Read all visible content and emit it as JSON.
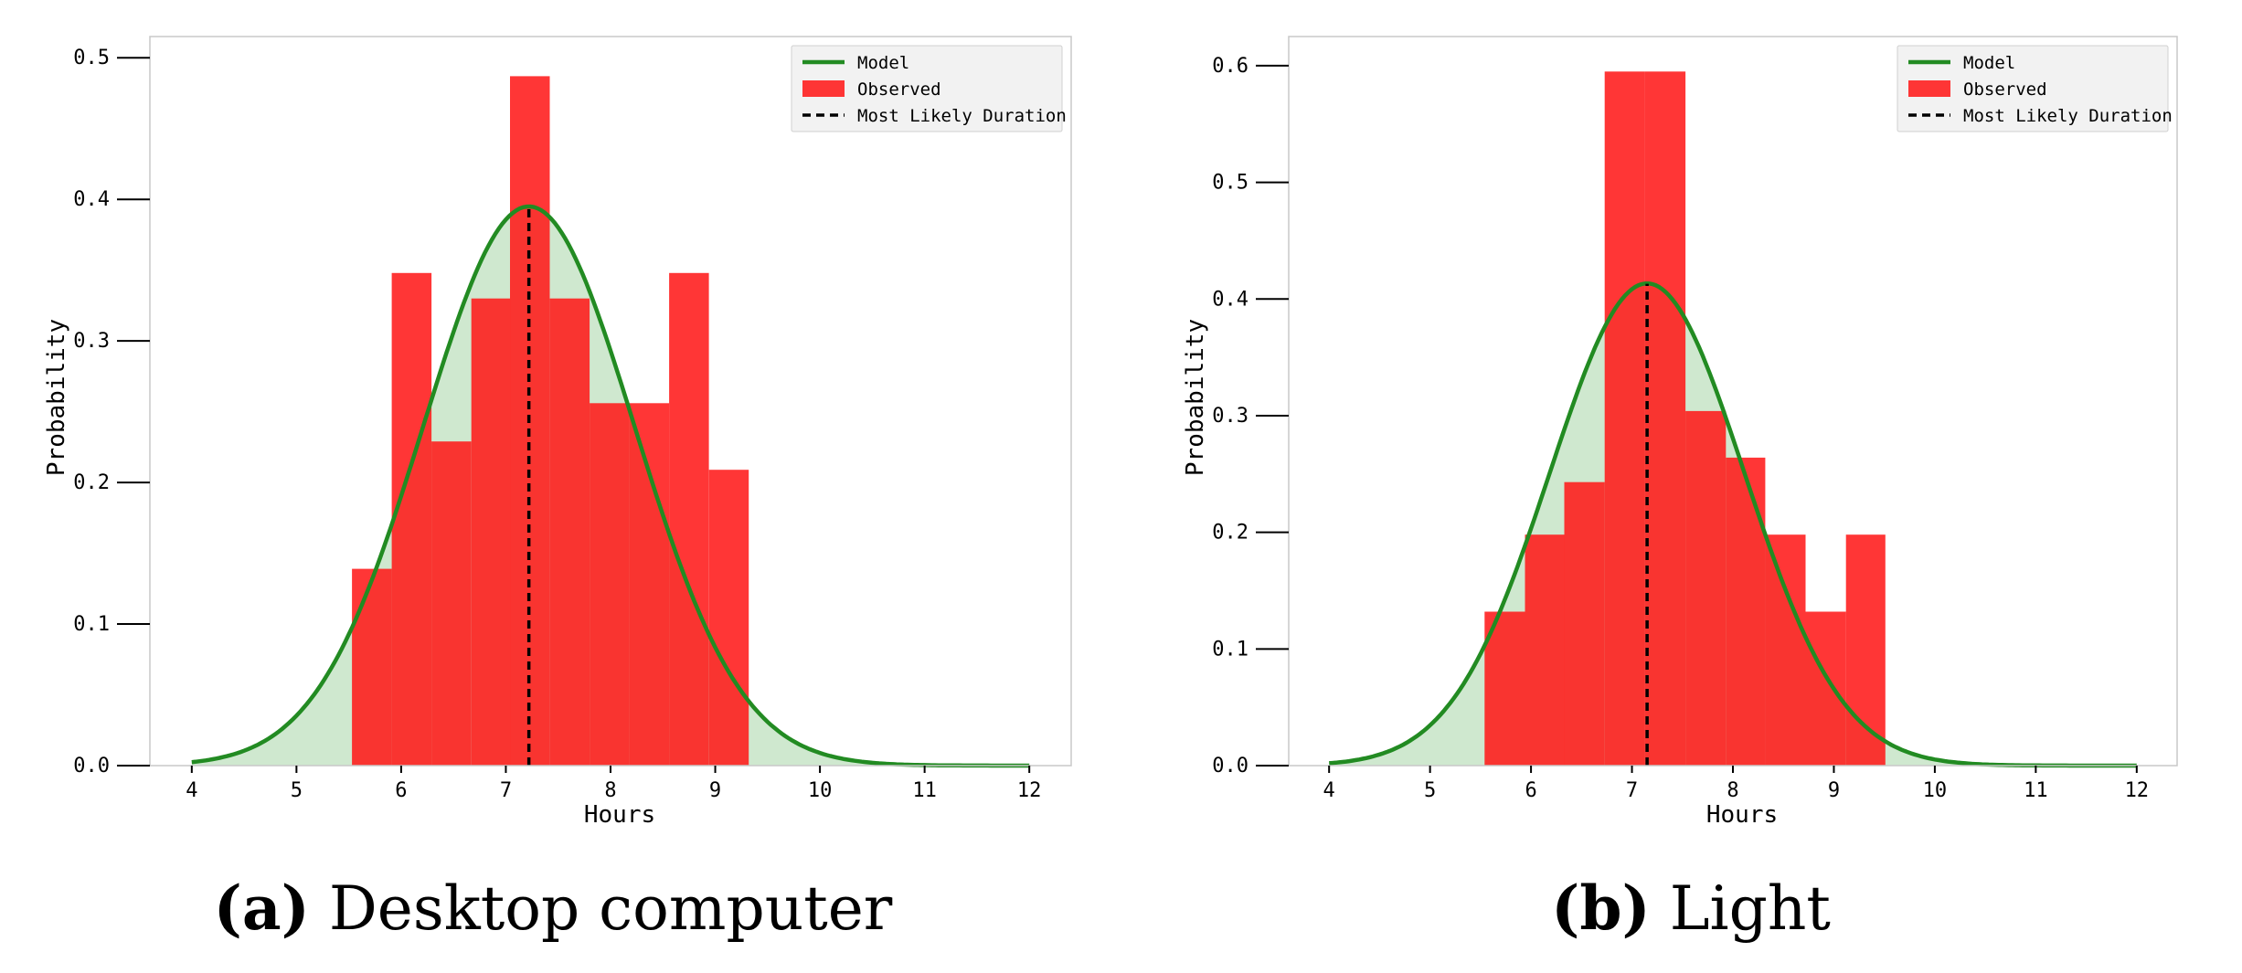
{
  "figure": {
    "panels": [
      {
        "letter": "a",
        "caption": "Desktop computer",
        "legend": {
          "model": "Model",
          "observed": "Observed",
          "most_likely": "Most Likely Duration"
        }
      },
      {
        "letter": "b",
        "caption": "Light",
        "legend": {
          "model": "Model",
          "observed": "Observed",
          "most_likely": "Most Likely Duration"
        }
      }
    ]
  },
  "colors": {
    "bar": "#ff1a1a",
    "curve": "#228b22",
    "fill": "#cfe8cf",
    "mode_line": "#000000",
    "axes": "#c8c8c8",
    "legend_bg": "#f2f2f2"
  },
  "chart_data": [
    {
      "type": "bar",
      "panel": "a",
      "title": "",
      "xlabel": "Hours",
      "ylabel": "Probability",
      "xlim": [
        3.6,
        12.4
      ],
      "ylim": [
        0.0,
        0.515
      ],
      "xticks": [
        4,
        5,
        6,
        7,
        8,
        9,
        10,
        11,
        12
      ],
      "yticks": [
        0.0,
        0.1,
        0.2,
        0.3,
        0.4,
        0.5
      ],
      "ytick_labels": [
        "0.0",
        "0.1",
        "0.2",
        "0.3",
        "0.4",
        "0.5"
      ],
      "grid": false,
      "legend_position": "top-right",
      "bins": [
        {
          "x0": 5.53,
          "x1": 5.91,
          "value": 0.139
        },
        {
          "x0": 5.91,
          "x1": 6.29,
          "value": 0.348
        },
        {
          "x0": 6.29,
          "x1": 6.67,
          "value": 0.229
        },
        {
          "x0": 6.67,
          "x1": 7.04,
          "value": 0.33
        },
        {
          "x0": 7.04,
          "x1": 7.42,
          "value": 0.487
        },
        {
          "x0": 7.42,
          "x1": 7.8,
          "value": 0.33
        },
        {
          "x0": 7.8,
          "x1": 8.18,
          "value": 0.256
        },
        {
          "x0": 8.18,
          "x1": 8.56,
          "value": 0.256
        },
        {
          "x0": 8.56,
          "x1": 8.94,
          "value": 0.348
        },
        {
          "x0": 8.94,
          "x1": 9.32,
          "value": 0.209
        }
      ],
      "model": {
        "distribution": "normal",
        "mean": 7.22,
        "sd": 1.01,
        "x_range": [
          4,
          12
        ]
      },
      "most_likely_duration": {
        "x": 7.22,
        "y": 0.395
      }
    },
    {
      "type": "bar",
      "panel": "b",
      "title": "",
      "xlabel": "Hours",
      "ylabel": "Probability",
      "xlim": [
        3.6,
        12.4
      ],
      "ylim": [
        0.0,
        0.625
      ],
      "xticks": [
        4,
        5,
        6,
        7,
        8,
        9,
        10,
        11,
        12
      ],
      "yticks": [
        0.0,
        0.1,
        0.2,
        0.3,
        0.4,
        0.5,
        0.6
      ],
      "ytick_labels": [
        "0.0",
        "0.1",
        "0.2",
        "0.3",
        "0.4",
        "0.5",
        "0.6"
      ],
      "grid": false,
      "legend_position": "top-right",
      "bins": [
        {
          "x0": 5.54,
          "x1": 5.94,
          "value": 0.132
        },
        {
          "x0": 5.94,
          "x1": 6.33,
          "value": 0.198
        },
        {
          "x0": 6.33,
          "x1": 6.73,
          "value": 0.243
        },
        {
          "x0": 6.73,
          "x1": 7.13,
          "value": 0.595
        },
        {
          "x0": 7.13,
          "x1": 7.53,
          "value": 0.595
        },
        {
          "x0": 7.53,
          "x1": 7.93,
          "value": 0.304
        },
        {
          "x0": 7.93,
          "x1": 8.32,
          "value": 0.264
        },
        {
          "x0": 8.32,
          "x1": 8.72,
          "value": 0.198
        },
        {
          "x0": 8.72,
          "x1": 9.12,
          "value": 0.132
        },
        {
          "x0": 9.12,
          "x1": 9.51,
          "value": 0.198
        }
      ],
      "model": {
        "distribution": "normal",
        "mean": 7.15,
        "sd": 0.965,
        "x_range": [
          4,
          12
        ]
      },
      "most_likely_duration": {
        "x": 7.15,
        "y": 0.413
      }
    }
  ]
}
